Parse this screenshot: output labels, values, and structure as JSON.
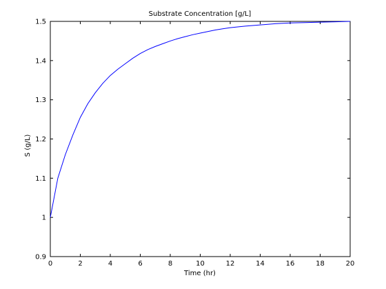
{
  "chart_data": {
    "type": "line",
    "title": "Substrate Concentration [g/L]",
    "xlabel": "Time (hr)",
    "ylabel": "S (g/L)",
    "xlim": [
      0,
      20
    ],
    "ylim": [
      0.9,
      1.5
    ],
    "x_ticks": [
      0,
      2,
      4,
      6,
      8,
      10,
      12,
      14,
      16,
      18,
      20
    ],
    "x_tick_labels": [
      "0",
      "2",
      "4",
      "6",
      "8",
      "10",
      "12",
      "14",
      "16",
      "18",
      "20"
    ],
    "y_ticks": [
      0.9,
      1.0,
      1.1,
      1.2,
      1.3,
      1.4,
      1.5
    ],
    "y_tick_labels": [
      "0.9",
      "1",
      "1.1",
      "1.2",
      "1.3",
      "1.4",
      "1.5"
    ],
    "grid": false,
    "legend": false,
    "series": [
      {
        "color": "#0000ff",
        "x": [
          0,
          0.5,
          1,
          1.5,
          2,
          2.5,
          3,
          3.5,
          4,
          4.5,
          5,
          5.5,
          6,
          6.5,
          7,
          7.5,
          8,
          8.5,
          9,
          9.5,
          10,
          10.5,
          11,
          11.5,
          12,
          13,
          14,
          15,
          16,
          17,
          18,
          19,
          20
        ],
        "y": [
          1.0,
          1.1,
          1.16,
          1.21,
          1.255,
          1.29,
          1.318,
          1.342,
          1.362,
          1.378,
          1.392,
          1.406,
          1.418,
          1.428,
          1.436,
          1.443,
          1.45,
          1.456,
          1.461,
          1.466,
          1.47,
          1.474,
          1.478,
          1.481,
          1.484,
          1.488,
          1.491,
          1.494,
          1.496,
          1.497,
          1.498,
          1.499,
          1.5
        ]
      }
    ]
  }
}
